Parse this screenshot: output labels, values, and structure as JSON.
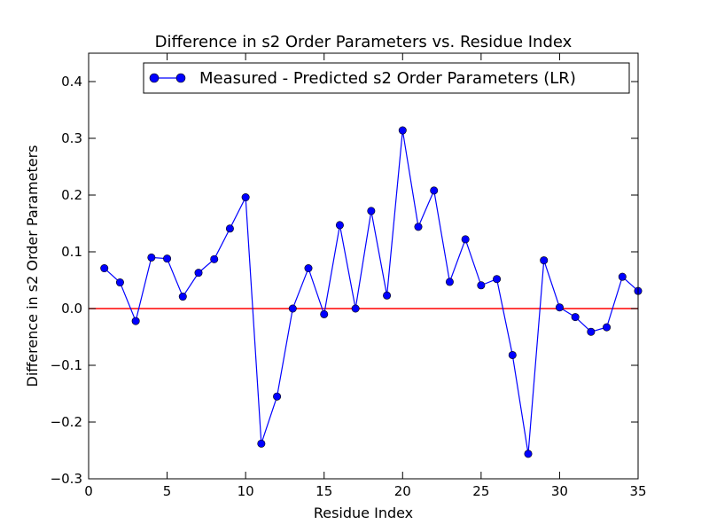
{
  "chart_data": {
    "type": "line",
    "title": "Difference in s2 Order Parameters vs. Residue Index",
    "xlabel": "Residue Index",
    "ylabel": "Difference in s2 Order Parameters",
    "xlim": [
      0,
      35
    ],
    "ylim": [
      -0.3,
      0.45
    ],
    "xticks": [
      0,
      5,
      10,
      15,
      20,
      25,
      30,
      35
    ],
    "yticks": [
      -0.3,
      -0.2,
      -0.1,
      0.0,
      0.1,
      0.2,
      0.3,
      0.4
    ],
    "xtick_labels": [
      "0",
      "5",
      "10",
      "15",
      "20",
      "25",
      "30",
      "35"
    ],
    "ytick_labels": [
      "−0.3",
      "−0.2",
      "−0.1",
      "0.0",
      "0.1",
      "0.2",
      "0.3",
      "0.4"
    ],
    "grid": false,
    "legend_position": "top-right",
    "reference_line": {
      "y": 0,
      "color": "#ff0000"
    },
    "series": [
      {
        "name": "Measured - Predicted s2 Order Parameters (LR)",
        "color": "#0000ff",
        "marker": "circle",
        "x": [
          1,
          2,
          3,
          4,
          5,
          6,
          7,
          8,
          9,
          10,
          11,
          12,
          13,
          14,
          15,
          16,
          17,
          18,
          19,
          20,
          21,
          22,
          23,
          24,
          25,
          26,
          27,
          28,
          29,
          30,
          31,
          32,
          33,
          34,
          35
        ],
        "y": [
          0.071,
          0.046,
          -0.022,
          0.09,
          0.088,
          0.021,
          0.063,
          0.087,
          0.141,
          0.196,
          -0.238,
          -0.155,
          0.0,
          0.071,
          -0.01,
          0.147,
          0.0,
          0.172,
          0.023,
          0.314,
          0.144,
          0.208,
          0.047,
          0.122,
          0.041,
          0.052,
          -0.082,
          -0.256,
          0.085,
          0.002,
          -0.015,
          -0.041,
          -0.033,
          0.056,
          0.031
        ]
      }
    ]
  }
}
